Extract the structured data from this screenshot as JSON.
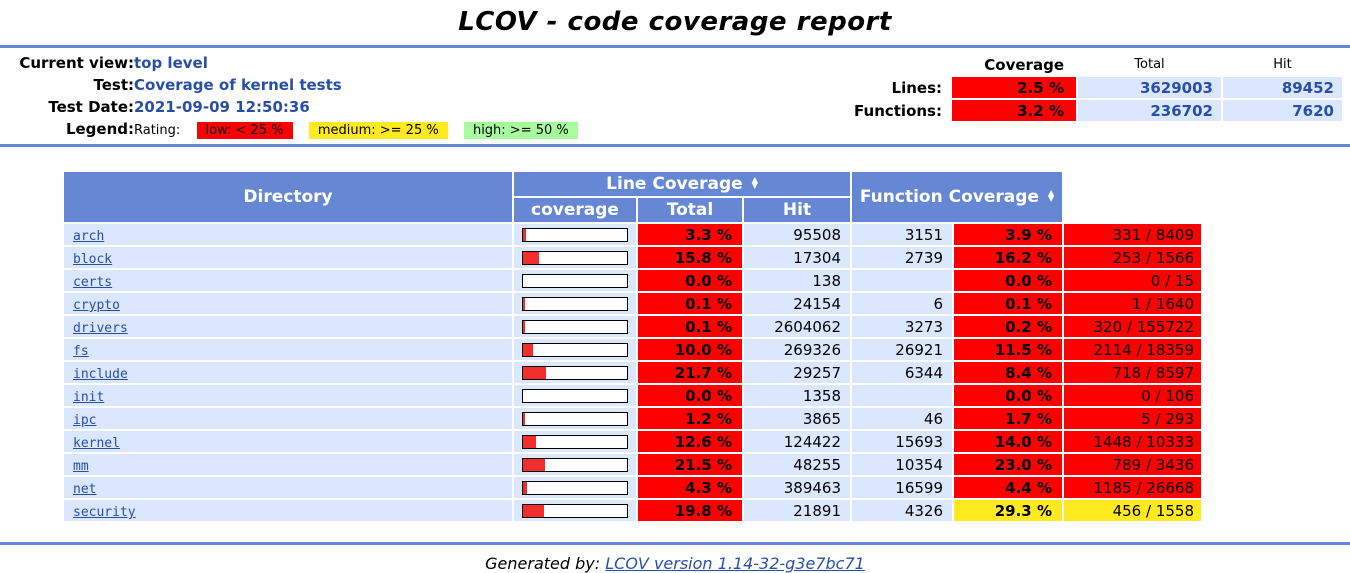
{
  "page": {
    "title": "LCOV - code coverage report"
  },
  "info": {
    "labels": {
      "current_view": "Current view:",
      "test": "Test:",
      "test_date": "Test Date:",
      "legend": "Legend:"
    },
    "values": {
      "current_view": "top level",
      "test": "Coverage of kernel tests",
      "test_date": "2021-09-09 12:50:36"
    },
    "legend": {
      "rating_label": "Rating:",
      "low": "low: < 25 %",
      "medium": "medium: >= 25 %",
      "high": "high: >= 50 %"
    }
  },
  "summary": {
    "col_headers": {
      "coverage": "Coverage",
      "total": "Total",
      "hit": "Hit"
    },
    "rows": [
      {
        "label": "Lines:",
        "coverage": "2.5 %",
        "total": "3629003",
        "hit": "89452",
        "rating": "low"
      },
      {
        "label": "Functions:",
        "coverage": "3.2 %",
        "total": "236702",
        "hit": "7620",
        "rating": "low"
      }
    ]
  },
  "main_table": {
    "headers": {
      "directory": "Directory",
      "line_coverage": "Line Coverage",
      "coverage": "coverage",
      "total": "Total",
      "hit": "Hit",
      "function_coverage": "Function Coverage"
    },
    "rows": [
      {
        "directory": "arch",
        "line_bar_pct": 3.3,
        "line_pct": "3.3 %",
        "total": "95508",
        "hit": "3151",
        "func_pct": "3.9 %",
        "func_ratio": "331 / 8409",
        "line_rating": "low",
        "func_rating": "low"
      },
      {
        "directory": "block",
        "line_bar_pct": 15.8,
        "line_pct": "15.8 %",
        "total": "17304",
        "hit": "2739",
        "func_pct": "16.2 %",
        "func_ratio": "253 / 1566",
        "line_rating": "low",
        "func_rating": "low"
      },
      {
        "directory": "certs",
        "line_bar_pct": 0.0,
        "line_pct": "0.0 %",
        "total": "138",
        "hit": "",
        "func_pct": "0.0 %",
        "func_ratio": "0 / 15",
        "line_rating": "low",
        "func_rating": "low"
      },
      {
        "directory": "crypto",
        "line_bar_pct": 0.1,
        "line_pct": "0.1 %",
        "total": "24154",
        "hit": "6",
        "func_pct": "0.1 %",
        "func_ratio": "1 / 1640",
        "line_rating": "low",
        "func_rating": "low"
      },
      {
        "directory": "drivers",
        "line_bar_pct": 0.1,
        "line_pct": "0.1 %",
        "total": "2604062",
        "hit": "3273",
        "func_pct": "0.2 %",
        "func_ratio": "320 / 155722",
        "line_rating": "low",
        "func_rating": "low"
      },
      {
        "directory": "fs",
        "line_bar_pct": 10.0,
        "line_pct": "10.0 %",
        "total": "269326",
        "hit": "26921",
        "func_pct": "11.5 %",
        "func_ratio": "2114 / 18359",
        "line_rating": "low",
        "func_rating": "low"
      },
      {
        "directory": "include",
        "line_bar_pct": 21.7,
        "line_pct": "21.7 %",
        "total": "29257",
        "hit": "6344",
        "func_pct": "8.4 %",
        "func_ratio": "718 / 8597",
        "line_rating": "low",
        "func_rating": "low"
      },
      {
        "directory": "init",
        "line_bar_pct": 0.0,
        "line_pct": "0.0 %",
        "total": "1358",
        "hit": "",
        "func_pct": "0.0 %",
        "func_ratio": "0 / 106",
        "line_rating": "low",
        "func_rating": "low"
      },
      {
        "directory": "ipc",
        "line_bar_pct": 1.2,
        "line_pct": "1.2 %",
        "total": "3865",
        "hit": "46",
        "func_pct": "1.7 %",
        "func_ratio": "5 / 293",
        "line_rating": "low",
        "func_rating": "low"
      },
      {
        "directory": "kernel",
        "line_bar_pct": 12.6,
        "line_pct": "12.6 %",
        "total": "124422",
        "hit": "15693",
        "func_pct": "14.0 %",
        "func_ratio": "1448 / 10333",
        "line_rating": "low",
        "func_rating": "low"
      },
      {
        "directory": "mm",
        "line_bar_pct": 21.5,
        "line_pct": "21.5 %",
        "total": "48255",
        "hit": "10354",
        "func_pct": "23.0 %",
        "func_ratio": "789 / 3436",
        "line_rating": "low",
        "func_rating": "low"
      },
      {
        "directory": "net",
        "line_bar_pct": 4.3,
        "line_pct": "4.3 %",
        "total": "389463",
        "hit": "16599",
        "func_pct": "4.4 %",
        "func_ratio": "1185 / 26668",
        "line_rating": "low",
        "func_rating": "low"
      },
      {
        "directory": "security",
        "line_bar_pct": 19.8,
        "line_pct": "19.8 %",
        "total": "21891",
        "hit": "4326",
        "func_pct": "29.3 %",
        "func_ratio": "456 / 1558",
        "line_rating": "low",
        "func_rating": "medium"
      }
    ]
  },
  "footer": {
    "generated_by": "Generated by: ",
    "link_label": "LCOV version 1.14-32-g3e7bc71"
  },
  "icons": {
    "sort_up": "▲",
    "sort_down": "▼"
  },
  "colors": {
    "low": "#FF0000",
    "medium": "#FFEA20",
    "high": "#A7FC9D",
    "header_blue": "#6688D4",
    "row_blue": "#DAE7FE",
    "link_blue": "#284FA8",
    "bar_fill_red": "#F12D2D"
  }
}
